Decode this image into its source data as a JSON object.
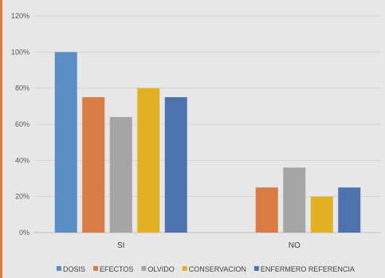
{
  "chart_data": {
    "type": "bar",
    "categories": [
      "SI",
      "NO"
    ],
    "series": [
      {
        "name": "DOSIS",
        "values": [
          100,
          0
        ],
        "color": "#5b8fc4"
      },
      {
        "name": "EFECTOS",
        "values": [
          75,
          25
        ],
        "color": "#d87b44"
      },
      {
        "name": "OLVIDO",
        "values": [
          64,
          36
        ],
        "color": "#a5a5a5"
      },
      {
        "name": "CONSERVACION",
        "values": [
          80,
          20
        ],
        "color": "#e3b124"
      },
      {
        "name": "ENFERMERO REFERENCIA",
        "values": [
          75,
          25
        ],
        "color": "#4e74b0"
      }
    ],
    "title": "",
    "xlabel": "",
    "ylabel": "",
    "ylim": [
      0,
      120
    ],
    "yticks": [
      0,
      20,
      40,
      60,
      80,
      100,
      120
    ],
    "ytick_labels": [
      "0%",
      "20%",
      "40%",
      "60%",
      "80%",
      "100%",
      "120%"
    ],
    "grid": true,
    "legend_position": "bottom"
  }
}
